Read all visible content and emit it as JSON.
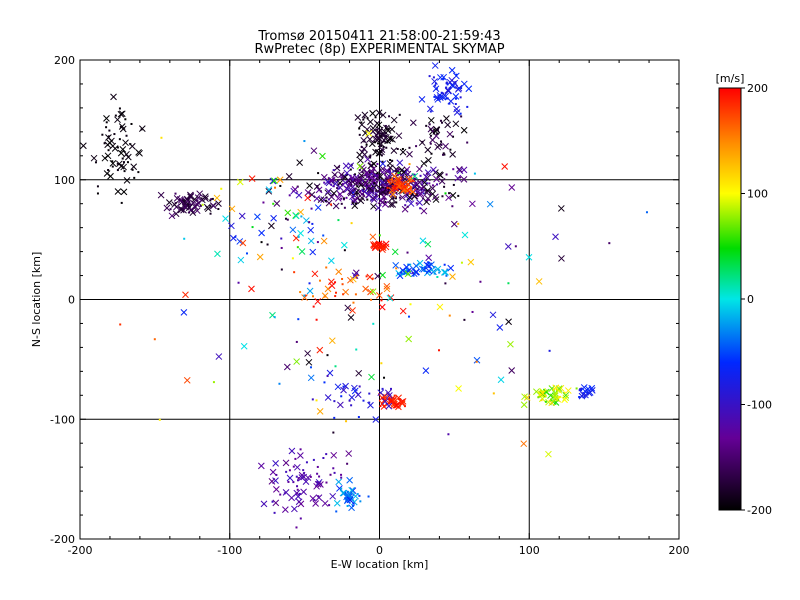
{
  "chart_data": {
    "type": "scatter",
    "title": "Tromsø 20150411 21:58:00-21:59:43",
    "subtitle": "RwPretec (8p) EXPERIMENTAL SKYMAP",
    "xlabel": "E-W location [km]",
    "ylabel": "N-S location [km]",
    "xlim": [
      -200,
      200
    ],
    "ylim": [
      -200,
      200
    ],
    "xticks": [
      "-200",
      "-100",
      "0",
      "100",
      "200"
    ],
    "yticks": [
      "-200",
      "-100",
      "0",
      "100",
      "200"
    ],
    "grid": true,
    "colorbar": {
      "label": "[m/s]",
      "range": [
        -200,
        200
      ],
      "ticks": [
        "200",
        "100",
        "0",
        "-100",
        "-200"
      ],
      "colormap": "rainbow (black-purple-blue-cyan-green-yellow-red)"
    },
    "marker_types": [
      "x",
      "dot"
    ],
    "clusters": [
      {
        "x": 0,
        "y": 95,
        "sx": 38,
        "sy": 14,
        "n": 420,
        "vmin": -200,
        "vmax": -100
      },
      {
        "x": 15,
        "y": 95,
        "sx": 8,
        "sy": 6,
        "n": 45,
        "vmin": 150,
        "vmax": 200
      },
      {
        "x": 0,
        "y": 135,
        "sx": 12,
        "sy": 18,
        "n": 90,
        "vmin": -200,
        "vmax": -170
      },
      {
        "x": 45,
        "y": 175,
        "sx": 10,
        "sy": 15,
        "n": 60,
        "vmin": -90,
        "vmax": -60
      },
      {
        "x": 40,
        "y": 135,
        "sx": 15,
        "sy": 15,
        "n": 45,
        "vmin": -200,
        "vmax": -150
      },
      {
        "x": -125,
        "y": 80,
        "sx": 14,
        "sy": 7,
        "n": 75,
        "vmin": -190,
        "vmax": -150
      },
      {
        "x": -175,
        "y": 120,
        "sx": 15,
        "sy": 30,
        "n": 70,
        "vmin": -200,
        "vmax": -190
      },
      {
        "x": 0,
        "y": 45,
        "sx": 4,
        "sy": 4,
        "n": 30,
        "vmin": 180,
        "vmax": 200
      },
      {
        "x": 30,
        "y": 25,
        "sx": 15,
        "sy": 5,
        "n": 50,
        "vmin": -70,
        "vmax": -10
      },
      {
        "x": 8,
        "y": -85,
        "sx": 7,
        "sy": 5,
        "n": 40,
        "vmin": 180,
        "vmax": 200
      },
      {
        "x": 115,
        "y": -80,
        "sx": 12,
        "sy": 6,
        "n": 50,
        "vmin": 50,
        "vmax": 120
      },
      {
        "x": 138,
        "y": -78,
        "sx": 6,
        "sy": 6,
        "n": 18,
        "vmin": -90,
        "vmax": -60
      },
      {
        "x": -50,
        "y": -150,
        "sx": 20,
        "sy": 25,
        "n": 80,
        "vmin": -140,
        "vmax": -100
      },
      {
        "x": -20,
        "y": -165,
        "sx": 8,
        "sy": 10,
        "n": 35,
        "vmin": -70,
        "vmax": -10
      },
      {
        "x": -20,
        "y": 10,
        "sx": 30,
        "sy": 15,
        "n": 40,
        "vmin": 150,
        "vmax": 200
      },
      {
        "x": -60,
        "y": 60,
        "sx": 50,
        "sy": 40,
        "n": 60,
        "vmin": -200,
        "vmax": 200
      },
      {
        "x": 0,
        "y": 0,
        "sx": 110,
        "sy": 100,
        "n": 140,
        "vmin": -200,
        "vmax": 200
      },
      {
        "x": -20,
        "y": -80,
        "sx": 25,
        "sy": 15,
        "n": 30,
        "vmin": -110,
        "vmax": -60
      }
    ]
  }
}
